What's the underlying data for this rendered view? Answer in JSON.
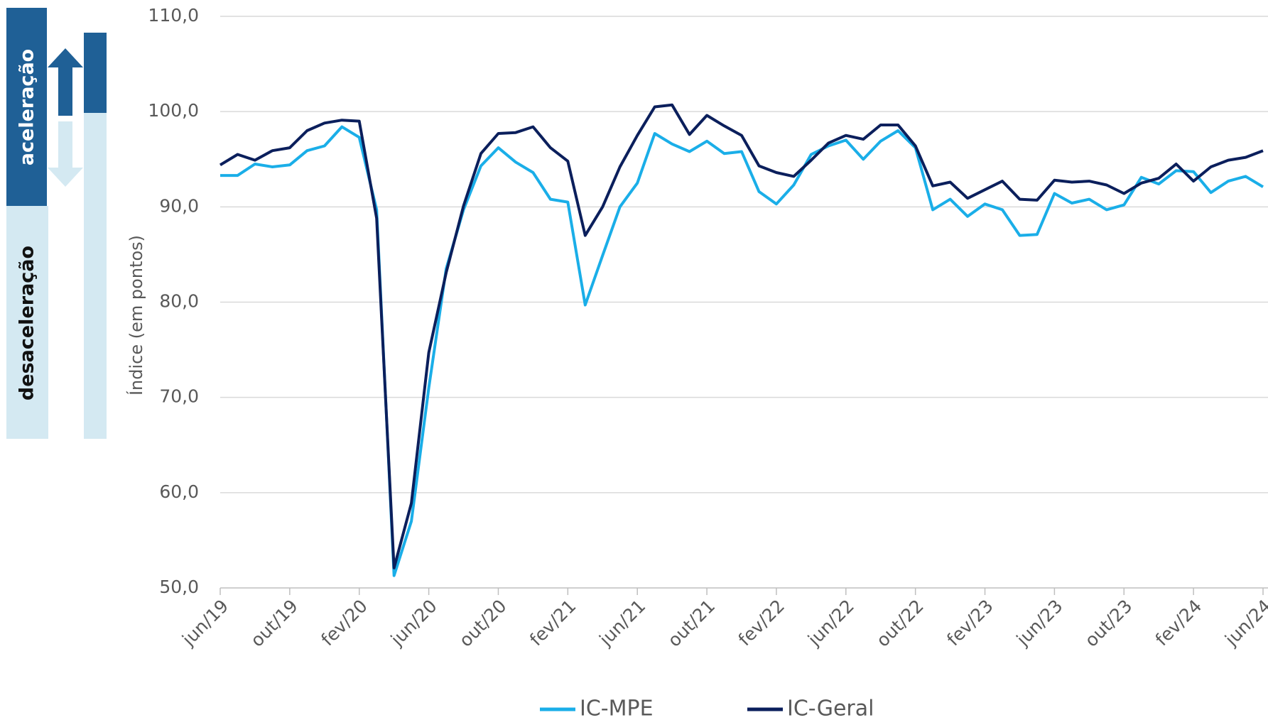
{
  "chart_data": {
    "type": "line",
    "ylabel": "Índice (em pontos)",
    "side_labels": {
      "up": "aceleração",
      "down": "desaceleração"
    },
    "categories": [
      "jun/19",
      null,
      null,
      null,
      "out/19",
      null,
      null,
      null,
      "fev/20",
      null,
      null,
      null,
      "jun/20",
      null,
      null,
      null,
      "out/20",
      null,
      null,
      null,
      "fev/21",
      null,
      null,
      null,
      "jun/21",
      null,
      null,
      null,
      "out/21",
      null,
      null,
      null,
      "fev/22",
      null,
      null,
      null,
      "jun/22",
      null,
      null,
      null,
      "out/22",
      null,
      null,
      null,
      "fev/23",
      null,
      null,
      null,
      "jun/23",
      null,
      null,
      null,
      "out/23",
      null,
      null,
      null,
      "fev/24",
      null,
      null,
      null,
      "jun/24"
    ],
    "series": [
      {
        "name": "IC-MPE",
        "color": "#1aaee8",
        "values": [
          93.3,
          93.3,
          94.5,
          94.2,
          94.4,
          95.9,
          96.4,
          98.4,
          97.3,
          89.7,
          51.3,
          57.0,
          71.0,
          83.5,
          89.7,
          94.3,
          96.2,
          94.7,
          93.6,
          90.8,
          90.5,
          79.7,
          84.9,
          90.0,
          92.5,
          97.7,
          96.6,
          95.8,
          96.9,
          95.6,
          95.8,
          91.6,
          90.3,
          92.3,
          95.5,
          96.4,
          97.0,
          95.0,
          96.9,
          98.0,
          96.2,
          89.7,
          90.8,
          89.0,
          90.3,
          89.7,
          87.0,
          87.1,
          91.4,
          90.4,
          90.8,
          89.7,
          90.2,
          93.1,
          92.4,
          93.8,
          93.7,
          91.5,
          92.7,
          93.2,
          92.1
        ]
      },
      {
        "name": "IC-Geral",
        "color": "#0b1f5c",
        "values": [
          94.4,
          95.5,
          94.9,
          95.9,
          96.2,
          98.0,
          98.8,
          99.1,
          99.0,
          88.8,
          52.1,
          58.9,
          74.7,
          83.1,
          90.1,
          95.6,
          97.7,
          97.8,
          98.4,
          96.2,
          94.8,
          87.0,
          90.0,
          94.2,
          97.5,
          100.5,
          100.7,
          97.6,
          99.6,
          98.5,
          97.5,
          94.3,
          93.6,
          93.2,
          94.9,
          96.7,
          97.5,
          97.1,
          98.6,
          98.6,
          96.4,
          92.2,
          92.6,
          90.9,
          91.8,
          92.7,
          90.8,
          90.7,
          92.8,
          92.6,
          92.7,
          92.3,
          91.4,
          92.5,
          93.0,
          94.5,
          92.7,
          94.2,
          94.9,
          95.2,
          95.9
        ]
      }
    ],
    "ylim": [
      50,
      110
    ],
    "yticks": [
      {
        "value": 50,
        "label": "50,0"
      },
      {
        "value": 60,
        "label": "60,0"
      },
      {
        "value": 70,
        "label": "70,0"
      },
      {
        "value": 80,
        "label": "80,0"
      },
      {
        "value": 90,
        "label": "90,0"
      },
      {
        "value": 100,
        "label": "100,0"
      },
      {
        "value": 110,
        "label": "110,0"
      }
    ],
    "grid": true,
    "legend": "bottom"
  }
}
